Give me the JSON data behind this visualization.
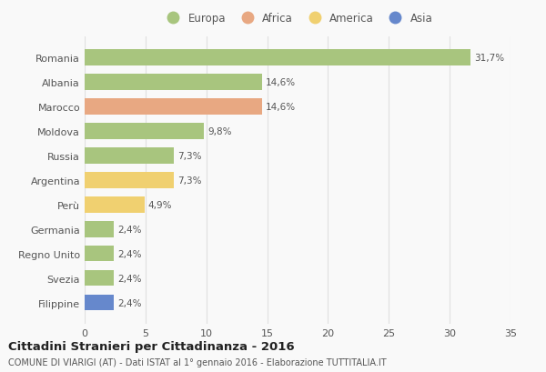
{
  "countries": [
    "Romania",
    "Albania",
    "Marocco",
    "Moldova",
    "Russia",
    "Argentina",
    "Perù",
    "Germania",
    "Regno Unito",
    "Svezia",
    "Filippine"
  ],
  "values": [
    31.7,
    14.6,
    14.6,
    9.8,
    7.3,
    7.3,
    4.9,
    2.4,
    2.4,
    2.4,
    2.4
  ],
  "labels": [
    "31,7%",
    "14,6%",
    "14,6%",
    "9,8%",
    "7,3%",
    "7,3%",
    "4,9%",
    "2,4%",
    "2,4%",
    "2,4%",
    "2,4%"
  ],
  "continents": [
    "Europa",
    "Europa",
    "Africa",
    "Europa",
    "Europa",
    "America",
    "America",
    "Europa",
    "Europa",
    "Europa",
    "Asia"
  ],
  "colors": {
    "Europa": "#a8c57e",
    "Africa": "#e8a882",
    "America": "#f0d070",
    "Asia": "#6688cc"
  },
  "xlim": [
    0,
    35
  ],
  "xticks": [
    0,
    5,
    10,
    15,
    20,
    25,
    30,
    35
  ],
  "title": "Cittadini Stranieri per Cittadinanza - 2016",
  "subtitle": "COMUNE DI VIARIGI (AT) - Dati ISTAT al 1° gennaio 2016 - Elaborazione TUTTITALIA.IT",
  "background_color": "#f9f9f9",
  "grid_color": "#e0e0e0"
}
